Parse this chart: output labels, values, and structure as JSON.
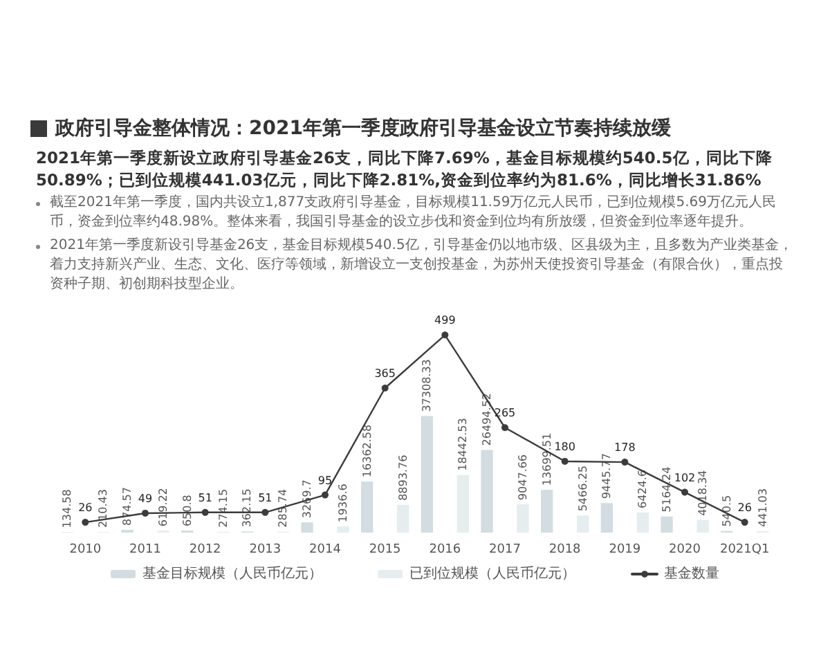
{
  "chart_data": {
    "type": "bar",
    "title": "政府引导金整体情况：2021年第一季度政府引导基金设立节奏持续放缓",
    "subtitle": "2021年第一季度新设立政府引导基金26支，同比下降7.69%，基金目标规模约540.5亿，同比下降50.89%；已到位规模441.03亿元，同比下降2.81%,资金到位率约为81.6%，同比增长31.86%",
    "annotations": [
      "截至2021年第一季度，国内共设立1,877支政府引导基金，目标规模11.59万亿元人民币，已到位规模5.69万亿元人民币，资金到位率约48.98%。整体来看，我国引导基金的设立步伐和资金到位均有所放缓，但资金到位率逐年提升。",
      "2021年第一季度新设引导基金26支，基金目标规模540.5亿，引导基金仍以地市级、区县级为主，且多数为产业类基金，着力支持新兴产业、生态、文化、医疗等领域，新增设立一支创投基金，为苏州天使投资引导基金（有限合伙），重点投资种子期、初创期科技型企业。"
    ],
    "categories": [
      "2010",
      "2011",
      "2012",
      "2013",
      "2014",
      "2015",
      "2016",
      "2017",
      "2018",
      "2019",
      "2020",
      "2021Q1"
    ],
    "series": [
      {
        "name": "基金目标规模（人民币亿元）",
        "color": "#d3dce1",
        "values": [
          134.58,
          874.57,
          650.8,
          362.15,
          3269.7,
          16362.58,
          37308.33,
          26494.52,
          13699.51,
          9445.77,
          5164.24,
          540.5
        ]
      },
      {
        "name": "已到位规模（人民币亿元）",
        "color": "#e6edef",
        "values": [
          210.43,
          619.22,
          274.15,
          285.74,
          1936.6,
          8893.76,
          18442.53,
          9047.66,
          5466.25,
          6424.6,
          4018.34,
          441.03
        ]
      },
      {
        "name": "基金数量",
        "type": "line",
        "axis": "y2",
        "color": "#3c3c3c",
        "values": [
          26,
          49,
          51,
          51,
          95,
          365,
          499,
          265,
          180,
          178,
          102,
          26
        ]
      }
    ],
    "data_labels": true,
    "legend": "bottom",
    "marker": "circle",
    "line_style": "solid",
    "grid": false
  }
}
